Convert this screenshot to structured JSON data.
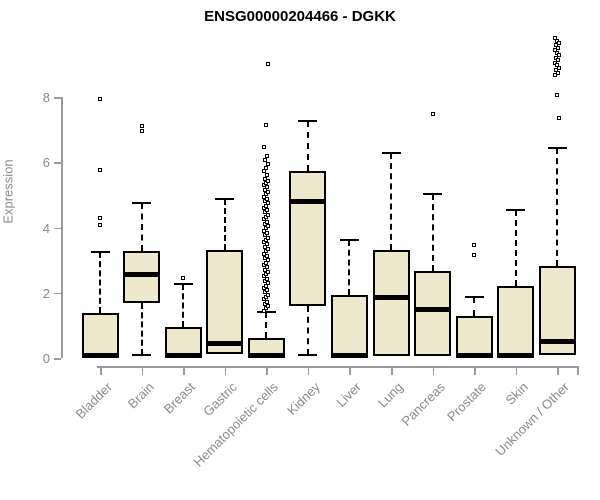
{
  "chart_data": {
    "type": "boxplot",
    "title": "ENSG00000204466 - DGKK",
    "ylabel": "Expression",
    "xlabel": "",
    "yticks": [
      0,
      2,
      4,
      6,
      8
    ],
    "ylim": [
      0,
      9.9
    ],
    "grid": false,
    "legend": false,
    "colors": {
      "box_fill": "#EEE8CD",
      "box_border": "#000000",
      "median": "#000000",
      "axis": "#9a9a9a",
      "label_text": "#8a8a8a",
      "title_text": "#000000"
    },
    "categories": [
      "Bladder",
      "Brain",
      "Breast",
      "Gastric",
      "Hematopoietic cells",
      "Kidney",
      "Liver",
      "Lung",
      "Pancreas",
      "Prostate",
      "Skin",
      "Unknown / Other"
    ],
    "series": [
      {
        "name": "Bladder",
        "q1": 0,
        "median": 0.05,
        "q3": 1.38,
        "whisker_low": 0,
        "whisker_high": 3.25,
        "outliers": [
          7.93,
          5.76,
          4.3,
          4.07
        ]
      },
      {
        "name": "Brain",
        "q1": 1.68,
        "median": 2.55,
        "q3": 3.27,
        "whisker_low": 0.1,
        "whisker_high": 4.75,
        "outliers": [
          7.1,
          6.95
        ]
      },
      {
        "name": "Breast",
        "q1": 0,
        "median": 0.05,
        "q3": 0.96,
        "whisker_low": 0,
        "whisker_high": 2.27,
        "outliers": [
          2.46
        ]
      },
      {
        "name": "Gastric",
        "q1": 0.12,
        "median": 0.44,
        "q3": 3.3,
        "whisker_low": 0.12,
        "whisker_high": 4.87,
        "outliers": []
      },
      {
        "name": "Hematopoietic cells",
        "q1": 0,
        "median": 0.05,
        "q3": 0.6,
        "whisker_low": 0,
        "whisker_high": 1.42,
        "outliers": [
          1.45,
          1.52,
          1.59,
          1.66,
          1.73,
          1.8,
          1.87,
          1.94,
          2.01,
          2.08,
          2.15,
          2.22,
          2.29,
          2.36,
          2.43,
          2.5,
          2.57,
          2.64,
          2.71,
          2.78,
          2.85,
          2.92,
          2.99,
          3.06,
          3.13,
          3.2,
          3.27,
          3.34,
          3.41,
          3.48,
          3.55,
          3.62,
          3.69,
          3.76,
          3.83,
          3.9,
          3.97,
          4.04,
          4.11,
          4.18,
          4.25,
          4.32,
          4.39,
          4.46,
          4.53,
          4.6,
          4.67,
          4.74,
          4.81,
          4.88,
          4.95,
          5.02,
          5.09,
          5.16,
          5.23,
          5.3,
          5.37,
          5.44,
          5.5,
          5.61,
          5.72,
          5.83,
          5.95,
          6.07,
          6.2,
          6.48,
          7.15,
          9.0
        ]
      },
      {
        "name": "Kidney",
        "q1": 1.6,
        "median": 4.8,
        "q3": 5.73,
        "whisker_low": 0.1,
        "whisker_high": 7.27,
        "outliers": []
      },
      {
        "name": "Liver",
        "q1": 0,
        "median": 0.05,
        "q3": 1.92,
        "whisker_low": 0,
        "whisker_high": 3.62,
        "outliers": []
      },
      {
        "name": "Lung",
        "q1": 0.05,
        "median": 1.85,
        "q3": 3.3,
        "whisker_low": 0.05,
        "whisker_high": 6.27,
        "outliers": []
      },
      {
        "name": "Pancreas",
        "q1": 0.05,
        "median": 1.5,
        "q3": 2.66,
        "whisker_low": 0.05,
        "whisker_high": 5.02,
        "outliers": [
          7.47
        ]
      },
      {
        "name": "Prostate",
        "q1": 0,
        "median": 0.05,
        "q3": 1.28,
        "whisker_low": 0,
        "whisker_high": 1.87,
        "outliers": [
          3.46,
          3.17
        ]
      },
      {
        "name": "Skin",
        "q1": 0,
        "median": 0.05,
        "q3": 2.22,
        "whisker_low": 0,
        "whisker_high": 4.55,
        "outliers": []
      },
      {
        "name": "Unknown / Other",
        "q1": 0.1,
        "median": 0.5,
        "q3": 2.83,
        "whisker_low": 0.1,
        "whisker_high": 6.45,
        "outliers": [
          9.8,
          9.72,
          9.65,
          9.58,
          9.5,
          9.43,
          9.36,
          9.28,
          9.2,
          9.12,
          9.05,
          8.97,
          8.9,
          8.82,
          8.75,
          8.68,
          8.05,
          7.35
        ]
      }
    ]
  }
}
